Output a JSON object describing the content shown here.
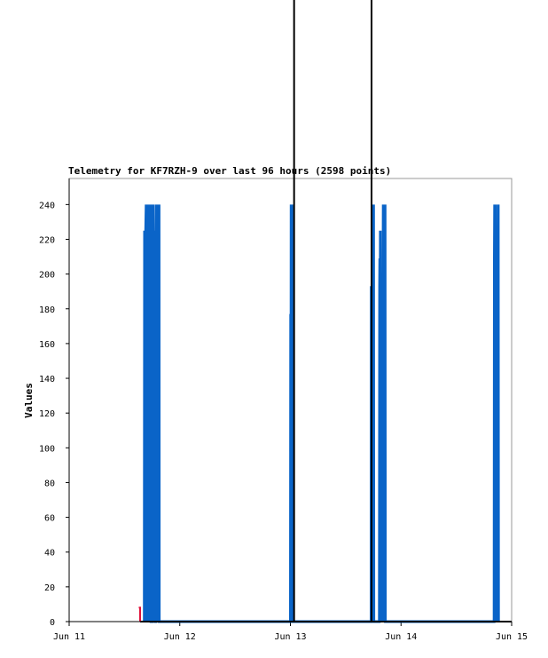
{
  "chart_data": {
    "type": "line",
    "title": "Telemetry for KF7RZH-9 over last 96 hours (2598 points)",
    "ylabel": "Values",
    "xlabel": "",
    "x_tick_labels": [
      "Jun 11",
      "Jun 12",
      "Jun 13",
      "Jun 14",
      "Jun 15"
    ],
    "x_domain_hours": [
      0,
      96
    ],
    "ylim": [
      0,
      255
    ],
    "y_ticks": [
      0,
      20,
      40,
      60,
      80,
      100,
      120,
      140,
      160,
      180,
      200,
      220,
      240
    ],
    "grid": false,
    "colors": {
      "series": "#0a64c8",
      "marker": "#e0103a",
      "vline": "#000000"
    },
    "vertical_markers_hours": [
      48.8,
      65.6
    ],
    "series": [
      {
        "points": [
          [
            16.3,
            0
          ],
          [
            16.35,
            225
          ],
          [
            16.4,
            0
          ],
          [
            16.6,
            225
          ],
          [
            16.7,
            240
          ],
          [
            16.8,
            0
          ],
          [
            16.9,
            240
          ],
          [
            17.0,
            225
          ],
          [
            17.05,
            0
          ],
          [
            17.1,
            240
          ],
          [
            17.15,
            0
          ],
          [
            17.2,
            225
          ],
          [
            17.25,
            128
          ],
          [
            17.3,
            0
          ],
          [
            17.35,
            96
          ],
          [
            17.4,
            240
          ],
          [
            17.45,
            0
          ],
          [
            17.55,
            112
          ],
          [
            17.6,
            240
          ],
          [
            17.65,
            0
          ],
          [
            17.7,
            145
          ],
          [
            17.75,
            0
          ],
          [
            18.0,
            0
          ],
          [
            18.05,
            225
          ],
          [
            18.1,
            240
          ],
          [
            18.15,
            0
          ],
          [
            18.2,
            240
          ],
          [
            18.25,
            225
          ],
          [
            18.3,
            0
          ],
          [
            18.35,
            205
          ],
          [
            18.4,
            64
          ],
          [
            18.45,
            0
          ],
          [
            18.5,
            145
          ],
          [
            18.55,
            225
          ],
          [
            18.6,
            128
          ],
          [
            18.65,
            0
          ],
          [
            18.8,
            0
          ],
          [
            18.85,
            240
          ],
          [
            18.9,
            160
          ],
          [
            18.95,
            0
          ],
          [
            19.0,
            48
          ],
          [
            19.05,
            0
          ],
          [
            19.2,
            240
          ],
          [
            19.25,
            0
          ],
          [
            19.35,
            225
          ],
          [
            19.4,
            0
          ],
          [
            19.5,
            240
          ],
          [
            19.55,
            0
          ],
          [
            48.0,
            0
          ],
          [
            48.05,
            177
          ],
          [
            48.1,
            0
          ],
          [
            48.15,
            240
          ],
          [
            48.2,
            225
          ],
          [
            48.25,
            0
          ],
          [
            48.35,
            240
          ],
          [
            48.4,
            0
          ],
          [
            65.5,
            0
          ],
          [
            65.55,
            193
          ],
          [
            65.6,
            0
          ],
          [
            65.7,
            145
          ],
          [
            65.75,
            0
          ],
          [
            65.85,
            120
          ],
          [
            65.9,
            240
          ],
          [
            65.95,
            0
          ],
          [
            66.05,
            240
          ],
          [
            66.1,
            0
          ],
          [
            66.2,
            0
          ],
          [
            67.3,
            0
          ],
          [
            67.35,
            193
          ],
          [
            67.4,
            209
          ],
          [
            67.45,
            0
          ],
          [
            67.5,
            225
          ],
          [
            67.55,
            160
          ],
          [
            67.6,
            0
          ],
          [
            67.7,
            5
          ],
          [
            67.8,
            10
          ],
          [
            67.9,
            16
          ],
          [
            68.0,
            0
          ],
          [
            68.05,
            80
          ],
          [
            68.1,
            209
          ],
          [
            68.15,
            240
          ],
          [
            68.2,
            0
          ],
          [
            68.3,
            193
          ],
          [
            68.35,
            0
          ],
          [
            68.4,
            240
          ],
          [
            68.45,
            0
          ],
          [
            68.55,
            240
          ],
          [
            68.6,
            0
          ],
          [
            92.2,
            0
          ],
          [
            92.25,
            209
          ],
          [
            92.3,
            240
          ],
          [
            92.35,
            0
          ],
          [
            92.5,
            240
          ],
          [
            92.55,
            160
          ],
          [
            92.6,
            0
          ],
          [
            92.7,
            225
          ],
          [
            92.75,
            112
          ],
          [
            92.8,
            0
          ],
          [
            92.9,
            80
          ],
          [
            92.95,
            0
          ],
          [
            93.1,
            240
          ],
          [
            93.15,
            0
          ]
        ]
      }
    ],
    "marker_points": [
      [
        15.1,
        8
      ],
      [
        15.4,
        8
      ],
      [
        15.4,
        0
      ]
    ]
  }
}
